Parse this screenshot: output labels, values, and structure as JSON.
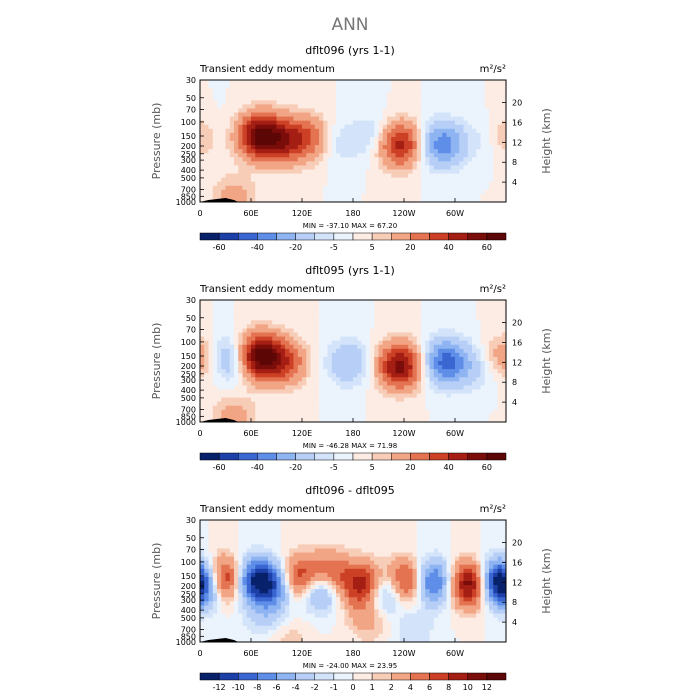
{
  "page_title": "ANN",
  "chart_data": [
    {
      "type": "heatmap",
      "title": "dflt096 (yrs 1-1)",
      "subtitle": "Transient eddy momentum",
      "units": "m²/s²",
      "ylabel": "Pressure (mb)",
      "ylabel_right": "Height (km)",
      "y_ticks": [
        "30",
        "50",
        "70",
        "100",
        "150",
        "200",
        "250",
        "300",
        "400",
        "500",
        "700",
        "850",
        "1000"
      ],
      "y_tick_values": [
        30,
        50,
        70,
        100,
        150,
        200,
        250,
        300,
        400,
        500,
        700,
        850,
        1000
      ],
      "height_ticks": [
        "20",
        "16",
        "12",
        "8",
        "4"
      ],
      "height_tick_values": [
        20,
        16,
        12,
        8,
        4
      ],
      "x_ticks": [
        "0",
        "60E",
        "120E",
        "180",
        "120W",
        "60W"
      ],
      "x_tick_values": [
        0,
        60,
        120,
        180,
        240,
        300
      ],
      "xlim": [
        0,
        360
      ],
      "ylim": [
        1000,
        30
      ],
      "stats": "MIN = -37.10   MAX =  67.20",
      "min": -37.1,
      "max": 67.2,
      "colorbar_labels": [
        "-60",
        "-40",
        "-20",
        "-5",
        "5",
        "20",
        "40",
        "60"
      ],
      "colorbar_levels": [
        -70,
        -60,
        -50,
        -40,
        -30,
        -20,
        -10,
        -5,
        0,
        5,
        10,
        20,
        30,
        40,
        50,
        60,
        70
      ],
      "features": [
        {
          "lon": 70,
          "p": 150,
          "value": 60
        },
        {
          "lon": 100,
          "p": 170,
          "value": 35
        },
        {
          "lon": 130,
          "p": 160,
          "value": 25
        },
        {
          "lon": 160,
          "p": 180,
          "value": -10
        },
        {
          "lon": 20,
          "p": 130,
          "value": -5
        },
        {
          "lon": 235,
          "p": 190,
          "value": 45
        },
        {
          "lon": 285,
          "p": 190,
          "value": -37
        },
        {
          "lon": 340,
          "p": 160,
          "value": -8
        },
        {
          "lon": 205,
          "p": 150,
          "value": -12
        },
        {
          "lon": 40,
          "p": 900,
          "value": 15
        },
        {
          "lon": 0,
          "p": 150,
          "value": 15
        }
      ]
    },
    {
      "type": "heatmap",
      "title": "dflt095 (yrs 1-1)",
      "subtitle": "Transient eddy momentum",
      "units": "m²/s²",
      "ylabel": "Pressure (mb)",
      "ylabel_right": "Height (km)",
      "y_ticks": [
        "30",
        "50",
        "70",
        "100",
        "150",
        "200",
        "250",
        "300",
        "400",
        "500",
        "700",
        "850",
        "1000"
      ],
      "y_tick_values": [
        30,
        50,
        70,
        100,
        150,
        200,
        250,
        300,
        400,
        500,
        700,
        850,
        1000
      ],
      "height_ticks": [
        "20",
        "16",
        "12",
        "8",
        "4"
      ],
      "height_tick_values": [
        20,
        16,
        12,
        8,
        4
      ],
      "x_ticks": [
        "0",
        "60E",
        "120E",
        "180",
        "120W",
        "60W"
      ],
      "x_tick_values": [
        0,
        60,
        120,
        180,
        240,
        300
      ],
      "xlim": [
        0,
        360
      ],
      "ylim": [
        1000,
        30
      ],
      "stats": "MIN = -46.28   MAX =  71.98",
      "min": -46.28,
      "max": 71.98,
      "colorbar_labels": [
        "-60",
        "-40",
        "-20",
        "-5",
        "5",
        "20",
        "40",
        "60"
      ],
      "colorbar_levels": [
        -70,
        -60,
        -50,
        -40,
        -30,
        -20,
        -10,
        -5,
        0,
        5,
        10,
        20,
        30,
        40,
        50,
        60,
        70
      ],
      "features": [
        {
          "lon": 70,
          "p": 150,
          "value": 65
        },
        {
          "lon": 100,
          "p": 180,
          "value": 30
        },
        {
          "lon": 35,
          "p": 160,
          "value": -25
        },
        {
          "lon": 175,
          "p": 180,
          "value": -20
        },
        {
          "lon": 235,
          "p": 200,
          "value": 55
        },
        {
          "lon": 290,
          "p": 180,
          "value": -46
        },
        {
          "lon": 330,
          "p": 220,
          "value": -10
        },
        {
          "lon": 0,
          "p": 160,
          "value": 20
        },
        {
          "lon": 40,
          "p": 900,
          "value": 15
        }
      ]
    },
    {
      "type": "heatmap",
      "title": "dflt096 - dflt095",
      "subtitle": "Transient eddy momentum",
      "units": "m²/s²",
      "ylabel": "Pressure (mb)",
      "ylabel_right": "Height (km)",
      "y_ticks": [
        "30",
        "50",
        "70",
        "100",
        "150",
        "200",
        "250",
        "300",
        "400",
        "500",
        "700",
        "850",
        "1000"
      ],
      "y_tick_values": [
        30,
        50,
        70,
        100,
        150,
        200,
        250,
        300,
        400,
        500,
        700,
        850,
        1000
      ],
      "height_ticks": [
        "20",
        "16",
        "12",
        "8",
        "4"
      ],
      "height_tick_values": [
        20,
        16,
        12,
        8,
        4
      ],
      "x_ticks": [
        "0",
        "60E",
        "120E",
        "180",
        "120W",
        "60W"
      ],
      "x_tick_values": [
        0,
        60,
        120,
        180,
        240,
        300
      ],
      "xlim": [
        0,
        360
      ],
      "ylim": [
        1000,
        30
      ],
      "stats": "MIN = -24.00   MAX =  23.95",
      "min": -24.0,
      "max": 23.95,
      "colorbar_labels": [
        "-12",
        "-10",
        "-8",
        "-6",
        "-4",
        "-2",
        "-1",
        "0",
        "1",
        "2",
        "4",
        "6",
        "8",
        "10",
        "12"
      ],
      "colorbar_levels": [
        -14,
        -12,
        -10,
        -8,
        -6,
        -4,
        -2,
        -1,
        0,
        1,
        2,
        4,
        6,
        8,
        10,
        12,
        14
      ],
      "features": [
        {
          "lon": 30,
          "p": 170,
          "value": 14
        },
        {
          "lon": 10,
          "p": 200,
          "value": -8
        },
        {
          "lon": 60,
          "p": 170,
          "value": -12
        },
        {
          "lon": 90,
          "p": 190,
          "value": -10
        },
        {
          "lon": 115,
          "p": 170,
          "value": 12
        },
        {
          "lon": 140,
          "p": 200,
          "value": -12
        },
        {
          "lon": 150,
          "p": 150,
          "value": 10
        },
        {
          "lon": 195,
          "p": 200,
          "value": 12
        },
        {
          "lon": 215,
          "p": 230,
          "value": -10
        },
        {
          "lon": 245,
          "p": 180,
          "value": 12
        },
        {
          "lon": 270,
          "p": 180,
          "value": -12
        },
        {
          "lon": 320,
          "p": 190,
          "value": 14
        },
        {
          "lon": 348,
          "p": 180,
          "value": -14
        },
        {
          "lon": 80,
          "p": 500,
          "value": -3
        },
        {
          "lon": 200,
          "p": 500,
          "value": 3
        },
        {
          "lon": 100,
          "p": 850,
          "value": 2
        },
        {
          "lon": 250,
          "p": 700,
          "value": -2
        }
      ]
    }
  ]
}
